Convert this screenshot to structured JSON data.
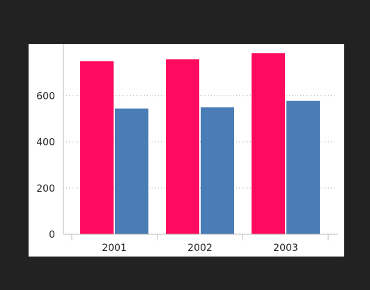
{
  "chart_data": {
    "type": "bar",
    "categories": [
      "2001",
      "2002",
      "2003"
    ],
    "series": [
      {
        "values": [
          750,
          758,
          785
        ],
        "color": "#ff0a5f"
      },
      {
        "values": [
          545,
          550,
          578
        ],
        "color": "#4a7db5"
      }
    ],
    "ylim": [
      0,
      825
    ],
    "yticks": [
      0,
      200,
      400,
      600
    ],
    "ytick_labels": [
      "0",
      "200",
      "400",
      "600"
    ],
    "grid": true,
    "legend": "none",
    "title": "",
    "xlabel": "",
    "ylabel": ""
  }
}
